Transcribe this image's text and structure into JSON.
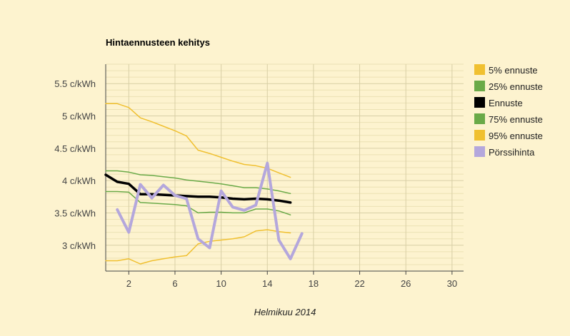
{
  "chart_data": {
    "type": "line",
    "title": "Hintaennusteen kehitys",
    "xlabel": "Helmikuu 2014",
    "ylabel": "",
    "xlim": [
      0,
      31
    ],
    "ylim": [
      2.6,
      5.8
    ],
    "x_ticks": [
      2,
      6,
      10,
      14,
      18,
      22,
      26,
      30
    ],
    "y_ticks": [
      {
        "value": 3.0,
        "label": "3 c/kWh"
      },
      {
        "value": 3.5,
        "label": "3.5 c/kWh"
      },
      {
        "value": 4.0,
        "label": "4 c/kWh"
      },
      {
        "value": 4.5,
        "label": "4.5 c/kWh"
      },
      {
        "value": 5.0,
        "label": "5 c/kWh"
      },
      {
        "value": 5.5,
        "label": "5.5 c/kWh"
      }
    ],
    "grid": true,
    "legend_position": "right",
    "series": [
      {
        "name": "5% ennuste",
        "color": "#f0c030",
        "width": 1.5,
        "x": [
          0,
          1,
          2,
          3,
          4,
          5,
          6,
          7,
          8,
          9,
          10,
          11,
          12,
          13,
          14,
          15,
          16
        ],
        "y": [
          5.19,
          5.19,
          5.13,
          4.97,
          4.91,
          4.84,
          4.77,
          4.69,
          4.47,
          4.42,
          4.36,
          4.3,
          4.25,
          4.23,
          4.19,
          4.12,
          4.05
        ]
      },
      {
        "name": "25% ennuste",
        "color": "#6aaa48",
        "width": 1.5,
        "x": [
          0,
          1,
          2,
          3,
          4,
          5,
          6,
          7,
          8,
          9,
          10,
          11,
          12,
          13,
          14,
          15,
          16
        ],
        "y": [
          4.15,
          4.15,
          4.13,
          4.09,
          4.08,
          4.06,
          4.04,
          4.01,
          3.99,
          3.97,
          3.95,
          3.92,
          3.89,
          3.89,
          3.87,
          3.84,
          3.8
        ]
      },
      {
        "name": "Ennuste",
        "color": "#000000",
        "width": 3.5,
        "x": [
          0,
          1,
          2,
          3,
          4,
          5,
          6,
          7,
          8,
          9,
          10,
          11,
          12,
          13,
          14,
          15,
          16
        ],
        "y": [
          4.09,
          3.98,
          3.95,
          3.79,
          3.79,
          3.78,
          3.77,
          3.76,
          3.75,
          3.75,
          3.74,
          3.72,
          3.71,
          3.72,
          3.71,
          3.69,
          3.66
        ]
      },
      {
        "name": "75% ennuste",
        "color": "#6aaa48",
        "width": 1.5,
        "x": [
          0,
          1,
          2,
          3,
          4,
          5,
          6,
          7,
          8,
          9,
          10,
          11,
          12,
          13,
          14,
          15,
          16
        ],
        "y": [
          3.83,
          3.83,
          3.82,
          3.66,
          3.65,
          3.64,
          3.63,
          3.61,
          3.5,
          3.51,
          3.51,
          3.5,
          3.5,
          3.56,
          3.56,
          3.53,
          3.47
        ]
      },
      {
        "name": "95% ennuste",
        "color": "#f0c030",
        "width": 1.5,
        "x": [
          0,
          1,
          2,
          3,
          4,
          5,
          6,
          7,
          8,
          9,
          10,
          11,
          12,
          13,
          14,
          15,
          16
        ],
        "y": [
          2.76,
          2.76,
          2.79,
          2.71,
          2.76,
          2.79,
          2.82,
          2.84,
          3.02,
          3.06,
          3.08,
          3.1,
          3.13,
          3.22,
          3.24,
          3.21,
          3.19
        ]
      },
      {
        "name": "Pörssihinta",
        "color": "#b4a7dc",
        "width": 4,
        "x": [
          1,
          2,
          3,
          4,
          5,
          6,
          7,
          8,
          9,
          10,
          11,
          12,
          13,
          14,
          15,
          16,
          17
        ],
        "y": [
          3.55,
          3.2,
          3.94,
          3.73,
          3.93,
          3.77,
          3.72,
          3.1,
          2.96,
          3.84,
          3.59,
          3.54,
          3.62,
          4.27,
          3.08,
          2.79,
          3.18
        ]
      }
    ]
  }
}
